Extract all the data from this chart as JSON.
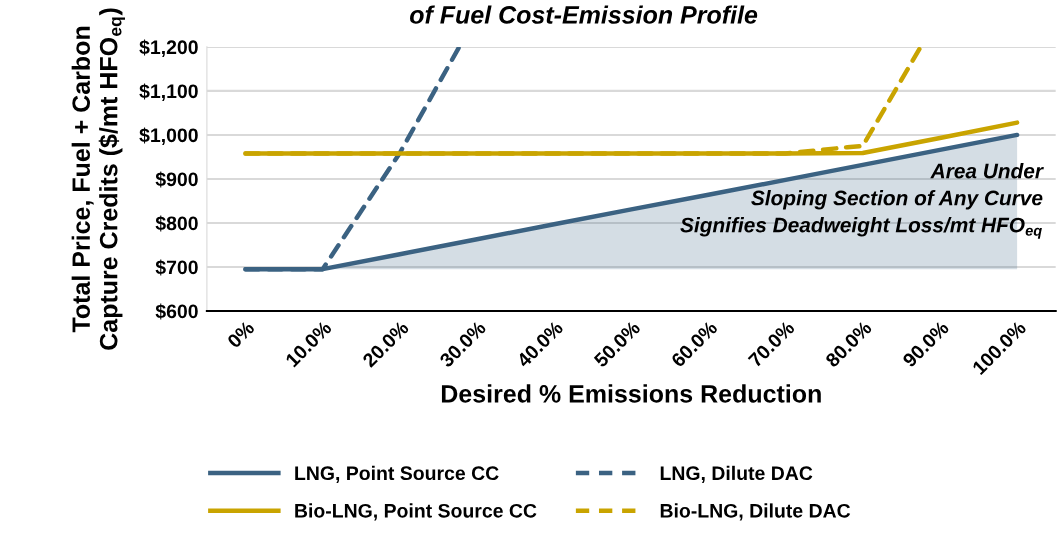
{
  "chart_data": {
    "type": "line",
    "title": "of Fuel Cost-Emission Profile",
    "xlabel": "Desired % Emissions Reduction",
    "ylabel": "Total Price, Fuel + Carbon\nCapture Credits ($/mt HFO$_{eq}$)",
    "x": [
      0,
      10,
      20,
      30,
      40,
      50,
      60,
      70,
      80,
      90,
      100
    ],
    "xlim": [
      -5,
      105
    ],
    "xticks": [
      {
        "value": 0,
        "label": "0%"
      },
      {
        "value": 10,
        "label": "10.0%"
      },
      {
        "value": 20,
        "label": "20.0%"
      },
      {
        "value": 30,
        "label": "30.0%"
      },
      {
        "value": 40,
        "label": "40.0%"
      },
      {
        "value": 50,
        "label": "50.0%"
      },
      {
        "value": 60,
        "label": "60.0%"
      },
      {
        "value": 70,
        "label": "70.0%"
      },
      {
        "value": 80,
        "label": "80.0%"
      },
      {
        "value": 90,
        "label": "90.0%"
      },
      {
        "value": 100,
        "label": "100.0%"
      }
    ],
    "ylim": [
      600,
      1200
    ],
    "yticks": [
      {
        "value": 600,
        "label": "$600"
      },
      {
        "value": 700,
        "label": "$700"
      },
      {
        "value": 800,
        "label": "$800"
      },
      {
        "value": 900,
        "label": "$900"
      },
      {
        "value": 1000,
        "label": "$1,000"
      },
      {
        "value": 1100,
        "label": "$1,100"
      },
      {
        "value": 1200,
        "label": "$1,200"
      }
    ],
    "series": [
      {
        "name": "LNG, Point Source CC",
        "color": "#3b6282",
        "line_style": "solid",
        "values": [
          695,
          695,
          729,
          763,
          797,
          831,
          864,
          898,
          932,
          966,
          1000
        ],
        "lower": [
          null,
          695,
          695,
          695,
          695,
          695,
          695,
          695,
          695,
          695,
          695
        ],
        "upper": [
          null,
          695,
          729,
          763,
          797,
          831,
          864,
          898,
          932,
          966,
          1000
        ]
      },
      {
        "name": "LNG, Dilute DAC",
        "color": "#3b6282",
        "line_style": "dashed",
        "x": [
          0,
          10,
          20,
          27.7
        ],
        "values": [
          695,
          695,
          959,
          1200
        ]
      },
      {
        "name": "Bio-LNG, Point Source CC",
        "color": "#c9a400",
        "line_style": "solid",
        "values": [
          958,
          958,
          958,
          958,
          958,
          958,
          958,
          958,
          959,
          993,
          1028
        ]
      },
      {
        "name": "Bio-LNG, Dilute DAC",
        "color": "#c9a400",
        "line_style": "dashed",
        "x": [
          0,
          10,
          20,
          30,
          40,
          50,
          60,
          70,
          78,
          80,
          87.5
        ],
        "values": [
          958,
          958,
          958,
          958,
          958,
          958,
          958,
          958,
          972,
          975,
          1200
        ]
      }
    ],
    "annotations": [
      "Area Under\nSloping Section of Any Curve\nSignifies Deadweight Loss/mt HFO$_{eq}$"
    ],
    "grid": "y",
    "legend": "bottom",
    "marker": "none"
  }
}
